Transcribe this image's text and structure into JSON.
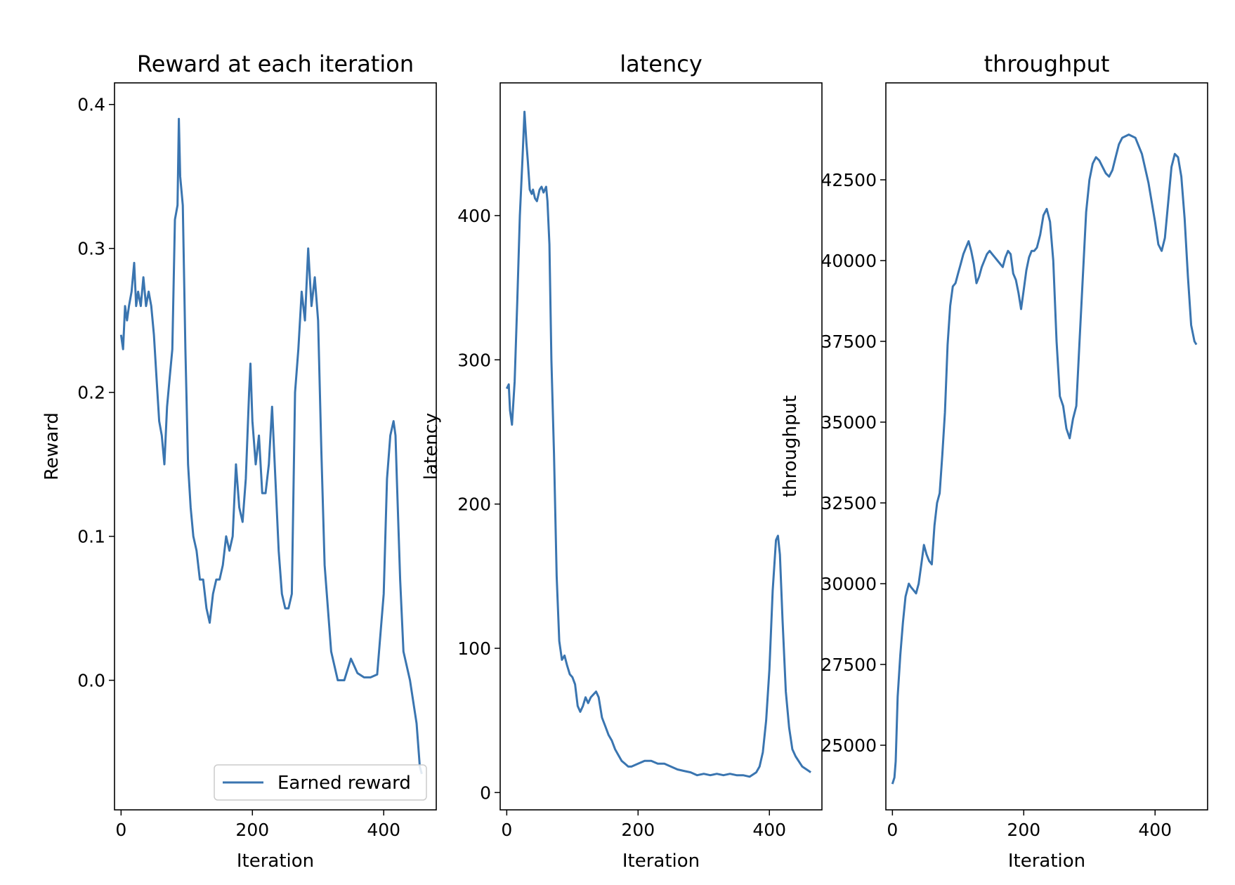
{
  "chart_data": [
    {
      "type": "line",
      "title": "Reward at each iteration",
      "xlabel": "Iteration",
      "ylabel": "Reward",
      "xlim": [
        -10,
        480
      ],
      "ylim": [
        -0.09,
        0.415
      ],
      "xticks": [
        0,
        200,
        400
      ],
      "xtick_labels": [
        "0",
        "200",
        "400"
      ],
      "yticks": [
        0.0,
        0.1,
        0.2,
        0.3,
        0.4
      ],
      "ytick_labels": [
        "0.0",
        "0.1",
        "0.2",
        "0.3",
        "0.4"
      ],
      "legend": {
        "placement": "lower-right",
        "entries": [
          "Earned reward"
        ]
      },
      "grid": false,
      "series": [
        {
          "name": "Earned reward",
          "color": "#3a75b0",
          "x": [
            0,
            3,
            6,
            9,
            12,
            16,
            20,
            23,
            26,
            30,
            34,
            38,
            42,
            46,
            50,
            54,
            58,
            62,
            66,
            70,
            74,
            78,
            82,
            86,
            88,
            90,
            94,
            98,
            102,
            106,
            110,
            115,
            120,
            125,
            130,
            135,
            140,
            145,
            150,
            155,
            160,
            165,
            170,
            175,
            180,
            185,
            190,
            195,
            197,
            200,
            205,
            210,
            215,
            220,
            225,
            230,
            235,
            240,
            245,
            250,
            255,
            260,
            265,
            270,
            275,
            280,
            285,
            290,
            295,
            300,
            305,
            310,
            320,
            330,
            340,
            350,
            355,
            360,
            370,
            380,
            390,
            400,
            405,
            410,
            415,
            418,
            420,
            425,
            430,
            440,
            450,
            455,
            458
          ],
          "y": [
            0.24,
            0.23,
            0.26,
            0.25,
            0.26,
            0.27,
            0.29,
            0.26,
            0.27,
            0.26,
            0.28,
            0.26,
            0.27,
            0.26,
            0.24,
            0.21,
            0.18,
            0.17,
            0.15,
            0.19,
            0.21,
            0.23,
            0.32,
            0.33,
            0.39,
            0.35,
            0.33,
            0.23,
            0.15,
            0.12,
            0.1,
            0.09,
            0.07,
            0.07,
            0.05,
            0.04,
            0.06,
            0.07,
            0.07,
            0.08,
            0.1,
            0.09,
            0.1,
            0.15,
            0.12,
            0.11,
            0.14,
            0.2,
            0.22,
            0.18,
            0.15,
            0.17,
            0.13,
            0.13,
            0.15,
            0.19,
            0.14,
            0.09,
            0.06,
            0.05,
            0.05,
            0.06,
            0.2,
            0.23,
            0.27,
            0.25,
            0.3,
            0.26,
            0.28,
            0.25,
            0.16,
            0.08,
            0.02,
            0.0,
            0.0,
            0.015,
            0.01,
            0.005,
            0.002,
            0.002,
            0.004,
            0.06,
            0.14,
            0.17,
            0.18,
            0.17,
            0.14,
            0.07,
            0.02,
            0.0,
            -0.03,
            -0.06,
            -0.065
          ]
        }
      ]
    },
    {
      "type": "line",
      "title": "latency",
      "xlabel": "Iteration",
      "ylabel": "latency",
      "xlim": [
        -10,
        480
      ],
      "ylim": [
        -12,
        492
      ],
      "xticks": [
        0,
        200,
        400
      ],
      "xtick_labels": [
        "0",
        "200",
        "400"
      ],
      "yticks": [
        0,
        100,
        200,
        300,
        400
      ],
      "ytick_labels": [
        "0",
        "100",
        "200",
        "300",
        "400"
      ],
      "grid": false,
      "series": [
        {
          "color": "#3a75b0",
          "x": [
            0,
            3,
            5,
            8,
            12,
            16,
            20,
            24,
            27,
            30,
            32,
            35,
            38,
            40,
            43,
            46,
            50,
            53,
            56,
            60,
            62,
            65,
            68,
            72,
            76,
            80,
            84,
            88,
            92,
            96,
            100,
            104,
            108,
            112,
            116,
            120,
            124,
            128,
            132,
            136,
            140,
            145,
            150,
            155,
            160,
            165,
            170,
            175,
            180,
            185,
            190,
            200,
            210,
            220,
            230,
            240,
            250,
            260,
            270,
            280,
            290,
            300,
            310,
            320,
            330,
            340,
            350,
            360,
            370,
            380,
            385,
            390,
            395,
            400,
            405,
            410,
            413,
            416,
            420,
            425,
            430,
            435,
            440,
            450,
            460,
            463
          ],
          "y": [
            280,
            283,
            265,
            255,
            285,
            340,
            400,
            440,
            472,
            450,
            438,
            418,
            415,
            418,
            412,
            410,
            418,
            420,
            416,
            420,
            410,
            380,
            300,
            235,
            150,
            105,
            92,
            95,
            88,
            82,
            80,
            75,
            60,
            56,
            60,
            66,
            62,
            66,
            68,
            70,
            66,
            52,
            46,
            40,
            36,
            30,
            26,
            22,
            20,
            18,
            18,
            20,
            22,
            22,
            20,
            20,
            18,
            16,
            15,
            14,
            12,
            13,
            12,
            13,
            12,
            13,
            12,
            12,
            11,
            14,
            18,
            28,
            50,
            85,
            140,
            175,
            178,
            165,
            120,
            70,
            45,
            30,
            25,
            18,
            15,
            14
          ]
        }
      ]
    },
    {
      "type": "line",
      "title": "throughput",
      "xlabel": "Iteration",
      "ylabel": "throughput",
      "xlim": [
        -10,
        480
      ],
      "ylim": [
        23000,
        45500
      ],
      "xticks": [
        0,
        200,
        400
      ],
      "xtick_labels": [
        "0",
        "200",
        "400"
      ],
      "yticks": [
        25000,
        27500,
        30000,
        32500,
        35000,
        37500,
        40000,
        42500
      ],
      "ytick_labels": [
        "25000",
        "27500",
        "30000",
        "32500",
        "35000",
        "37500",
        "40000",
        "42500"
      ],
      "grid": false,
      "series": [
        {
          "color": "#3a75b0",
          "x": [
            0,
            3,
            5,
            8,
            12,
            16,
            20,
            25,
            28,
            32,
            36,
            40,
            44,
            48,
            52,
            56,
            60,
            64,
            68,
            72,
            76,
            80,
            84,
            88,
            92,
            96,
            100,
            104,
            108,
            112,
            116,
            120,
            124,
            128,
            132,
            136,
            140,
            144,
            148,
            152,
            156,
            160,
            164,
            168,
            172,
            176,
            180,
            184,
            188,
            192,
            196,
            200,
            204,
            208,
            212,
            216,
            220,
            225,
            230,
            235,
            240,
            245,
            250,
            255,
            260,
            265,
            270,
            275,
            280,
            285,
            290,
            295,
            300,
            305,
            310,
            315,
            320,
            325,
            330,
            335,
            340,
            345,
            350,
            360,
            370,
            380,
            390,
            400,
            405,
            410,
            415,
            420,
            425,
            430,
            435,
            440,
            445,
            450,
            455,
            460,
            463
          ],
          "y": [
            23800,
            24000,
            24500,
            26500,
            27800,
            28800,
            29600,
            30000,
            29900,
            29800,
            29700,
            30000,
            30600,
            31200,
            30900,
            30700,
            30600,
            31800,
            32500,
            32800,
            34000,
            35300,
            37400,
            38600,
            39200,
            39300,
            39600,
            39900,
            40200,
            40400,
            40600,
            40300,
            39900,
            39300,
            39500,
            39800,
            40000,
            40200,
            40300,
            40200,
            40100,
            40000,
            39900,
            39800,
            40100,
            40300,
            40200,
            39600,
            39400,
            39000,
            38500,
            39100,
            39700,
            40100,
            40300,
            40300,
            40400,
            40800,
            41400,
            41600,
            41200,
            40000,
            37500,
            35800,
            35500,
            34800,
            34500,
            35100,
            35500,
            37500,
            39500,
            41500,
            42500,
            43000,
            43200,
            43100,
            42900,
            42700,
            42600,
            42800,
            43200,
            43600,
            43800,
            43900,
            43800,
            43300,
            42400,
            41200,
            40500,
            40300,
            40700,
            41800,
            42900,
            43300,
            43200,
            42600,
            41300,
            39500,
            38000,
            37500,
            37400
          ]
        }
      ]
    }
  ]
}
